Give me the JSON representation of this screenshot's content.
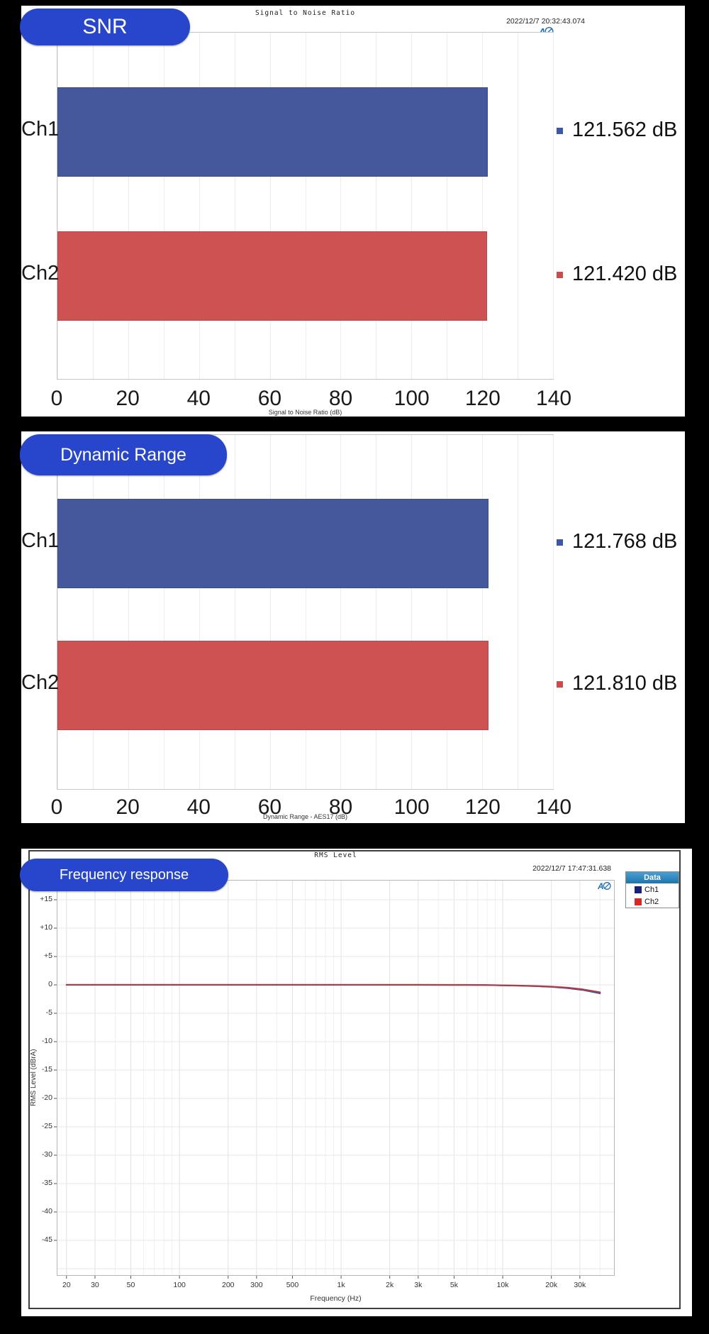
{
  "colors": {
    "background": "#000000",
    "badge_blue": "#2846cb",
    "bar_blue": "#45589c",
    "bar_red": "#cf5252",
    "marker_blue": "#3e56a5",
    "marker_red": "#cc4b4b",
    "curve_blue": "#3c55a5",
    "curve_red": "#b03a45",
    "legend_header_top": "#47a0d4",
    "legend_header_bottom": "#1e74ab",
    "legend_ch1": "#17217c",
    "legend_ch2": "#d32b23",
    "grid": "#ececec",
    "plot_border": "#c6c6c6",
    "ap_logo_blue": "#1f6cb5"
  },
  "icons": {
    "ap_logo": "audio-precision-logo"
  },
  "panels": {
    "snr": {
      "badge": "SNR",
      "title": "Signal to Noise Ratio",
      "timestamp": "2022/12/7 20:32:43.074",
      "xlabel": "Signal to Noise Ratio (dB)"
    },
    "dynamic_range": {
      "badge": "Dynamic Range",
      "xlabel": "Dynamic Range - AES17 (dB)"
    },
    "freq": {
      "badge": "Frequency response",
      "title": "RMS Level",
      "timestamp": "2022/12/7 17:47:31.638",
      "xlabel": "Frequency (Hz)",
      "ylabel": "RMS Level (dBrA)",
      "legend": {
        "header": "Data"
      }
    }
  },
  "chart_data": [
    {
      "type": "bar",
      "orientation": "horizontal",
      "title": "Signal to Noise Ratio",
      "timestamp": "2022/12/7 20:32:43.074",
      "categories": [
        "Ch1",
        "Ch2"
      ],
      "values": [
        121.562,
        121.42
      ],
      "value_labels": [
        "121.562 dB",
        "121.420 dB"
      ],
      "bar_colors": [
        "#45589c",
        "#cf5252"
      ],
      "marker_colors": [
        "#3e56a5",
        "#cc4b4b"
      ],
      "xlabel": "Signal to Noise Ratio (dB)",
      "xlim": [
        0,
        140
      ],
      "xtick_step": 20,
      "grid_step": 10,
      "grid": true
    },
    {
      "type": "bar",
      "orientation": "horizontal",
      "title": "",
      "categories": [
        "Ch1",
        "Ch2"
      ],
      "values": [
        121.768,
        121.81
      ],
      "value_labels": [
        "121.768 dB",
        "121.810 dB"
      ],
      "bar_colors": [
        "#45589c",
        "#cf5252"
      ],
      "marker_colors": [
        "#3e56a5",
        "#cc4b4b"
      ],
      "xlabel": "Dynamic Range - AES17 (dB)",
      "xlim": [
        0,
        140
      ],
      "xtick_step": 20,
      "grid_step": 10,
      "grid": true
    },
    {
      "type": "line",
      "title": "RMS Level",
      "timestamp": "2022/12/7 17:47:31.638",
      "xlabel": "Frequency (Hz)",
      "ylabel": "RMS Level (dBrA)",
      "xscale": "log",
      "xlim": [
        17.4,
        49300
      ],
      "ylim": [
        -51.25,
        18.5
      ],
      "yticks": [
        15,
        10,
        5,
        0,
        -5,
        -10,
        -15,
        -20,
        -25,
        -30,
        -35,
        -40,
        -45
      ],
      "ytick_labels": [
        "+15",
        "+10",
        "+5",
        "0",
        "-5",
        "-10",
        "-15",
        "-20",
        "-25",
        "-30",
        "-35",
        "-40",
        "-45"
      ],
      "xticks": [
        20,
        30,
        50,
        100,
        200,
        300,
        500,
        1000,
        2000,
        3000,
        5000,
        10000,
        20000,
        30000
      ],
      "xtick_labels": [
        "20",
        "30",
        "50",
        "100",
        "200",
        "300",
        "500",
        "1k",
        "2k",
        "3k",
        "5k",
        "10k",
        "20k",
        "30k"
      ],
      "grid": true,
      "legend": {
        "header": "Data",
        "position": "outside-right",
        "items": [
          {
            "label": "Ch1",
            "color": "#17217c"
          },
          {
            "label": "Ch2",
            "color": "#d32b23"
          }
        ]
      },
      "series": [
        {
          "name": "Ch1",
          "color": "#3c55a5",
          "points": [
            [
              20,
              0
            ],
            [
              100,
              0
            ],
            [
              1000,
              0
            ],
            [
              3000,
              0
            ],
            [
              6000,
              -0.01
            ],
            [
              8000,
              -0.03
            ],
            [
              10000,
              -0.09
            ],
            [
              12500,
              -0.14
            ],
            [
              16000,
              -0.24
            ],
            [
              20000,
              -0.36
            ],
            [
              25000,
              -0.57
            ],
            [
              31500,
              -0.92
            ],
            [
              40000,
              -1.5
            ]
          ]
        },
        {
          "name": "Ch2",
          "color": "#b03a45",
          "points": [
            [
              20,
              0.02
            ],
            [
              1000,
              0.02
            ],
            [
              3000,
              0.01
            ],
            [
              6000,
              0
            ],
            [
              8000,
              -0.02
            ],
            [
              10000,
              -0.07
            ],
            [
              12500,
              -0.12
            ],
            [
              16000,
              -0.2
            ],
            [
              20000,
              -0.31
            ],
            [
              25000,
              -0.49
            ],
            [
              31500,
              -0.8
            ],
            [
              40000,
              -1.3
            ]
          ]
        }
      ]
    }
  ]
}
